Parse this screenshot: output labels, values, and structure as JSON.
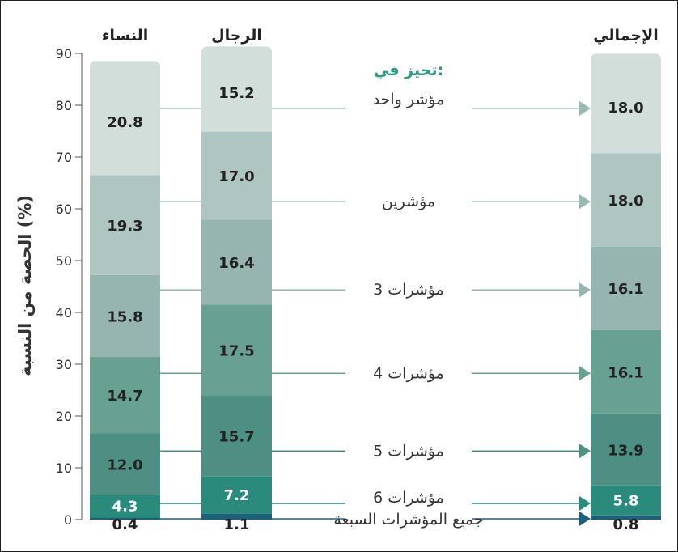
{
  "chart_data": {
    "type": "bar",
    "stacked": true,
    "ylabel": "الحصة من النسبة (%)",
    "ylim": [
      0,
      90
    ],
    "yticks": [
      0,
      10,
      20,
      30,
      40,
      50,
      60,
      70,
      80,
      90
    ],
    "legend_title": "تحيز في:",
    "categories": [
      "النساء",
      "الرجال",
      "الإجمالي"
    ],
    "series": [
      {
        "name": "جميع المؤشرات السبعة",
        "values": [
          0.4,
          1.1,
          0.8
        ],
        "color": "#1f5f7e"
      },
      {
        "name": "6 مؤشرات",
        "values": [
          4.3,
          7.2,
          5.8
        ],
        "color": "#2a8a7c"
      },
      {
        "name": "5 مؤشرات",
        "values": [
          12.0,
          15.7,
          13.9
        ],
        "color": "#4d8f82"
      },
      {
        "name": "4 مؤشرات",
        "values": [
          14.7,
          17.5,
          16.1
        ],
        "color": "#68a092"
      },
      {
        "name": "3 مؤشرات",
        "values": [
          15.8,
          16.4,
          16.1
        ],
        "color": "#97b5b0"
      },
      {
        "name": "مؤشرين",
        "values": [
          19.3,
          17.0,
          18.0
        ],
        "color": "#afc5c1"
      },
      {
        "name": "مؤشر واحد",
        "values": [
          20.8,
          15.2,
          18.0
        ],
        "color": "#d1deda"
      }
    ],
    "colors": {
      "label_text": "#222222",
      "bottom_label_text": "#ffffff",
      "legend_title": "#2e9a86",
      "axis": "#555555",
      "connector": "#9ab8b2"
    }
  }
}
